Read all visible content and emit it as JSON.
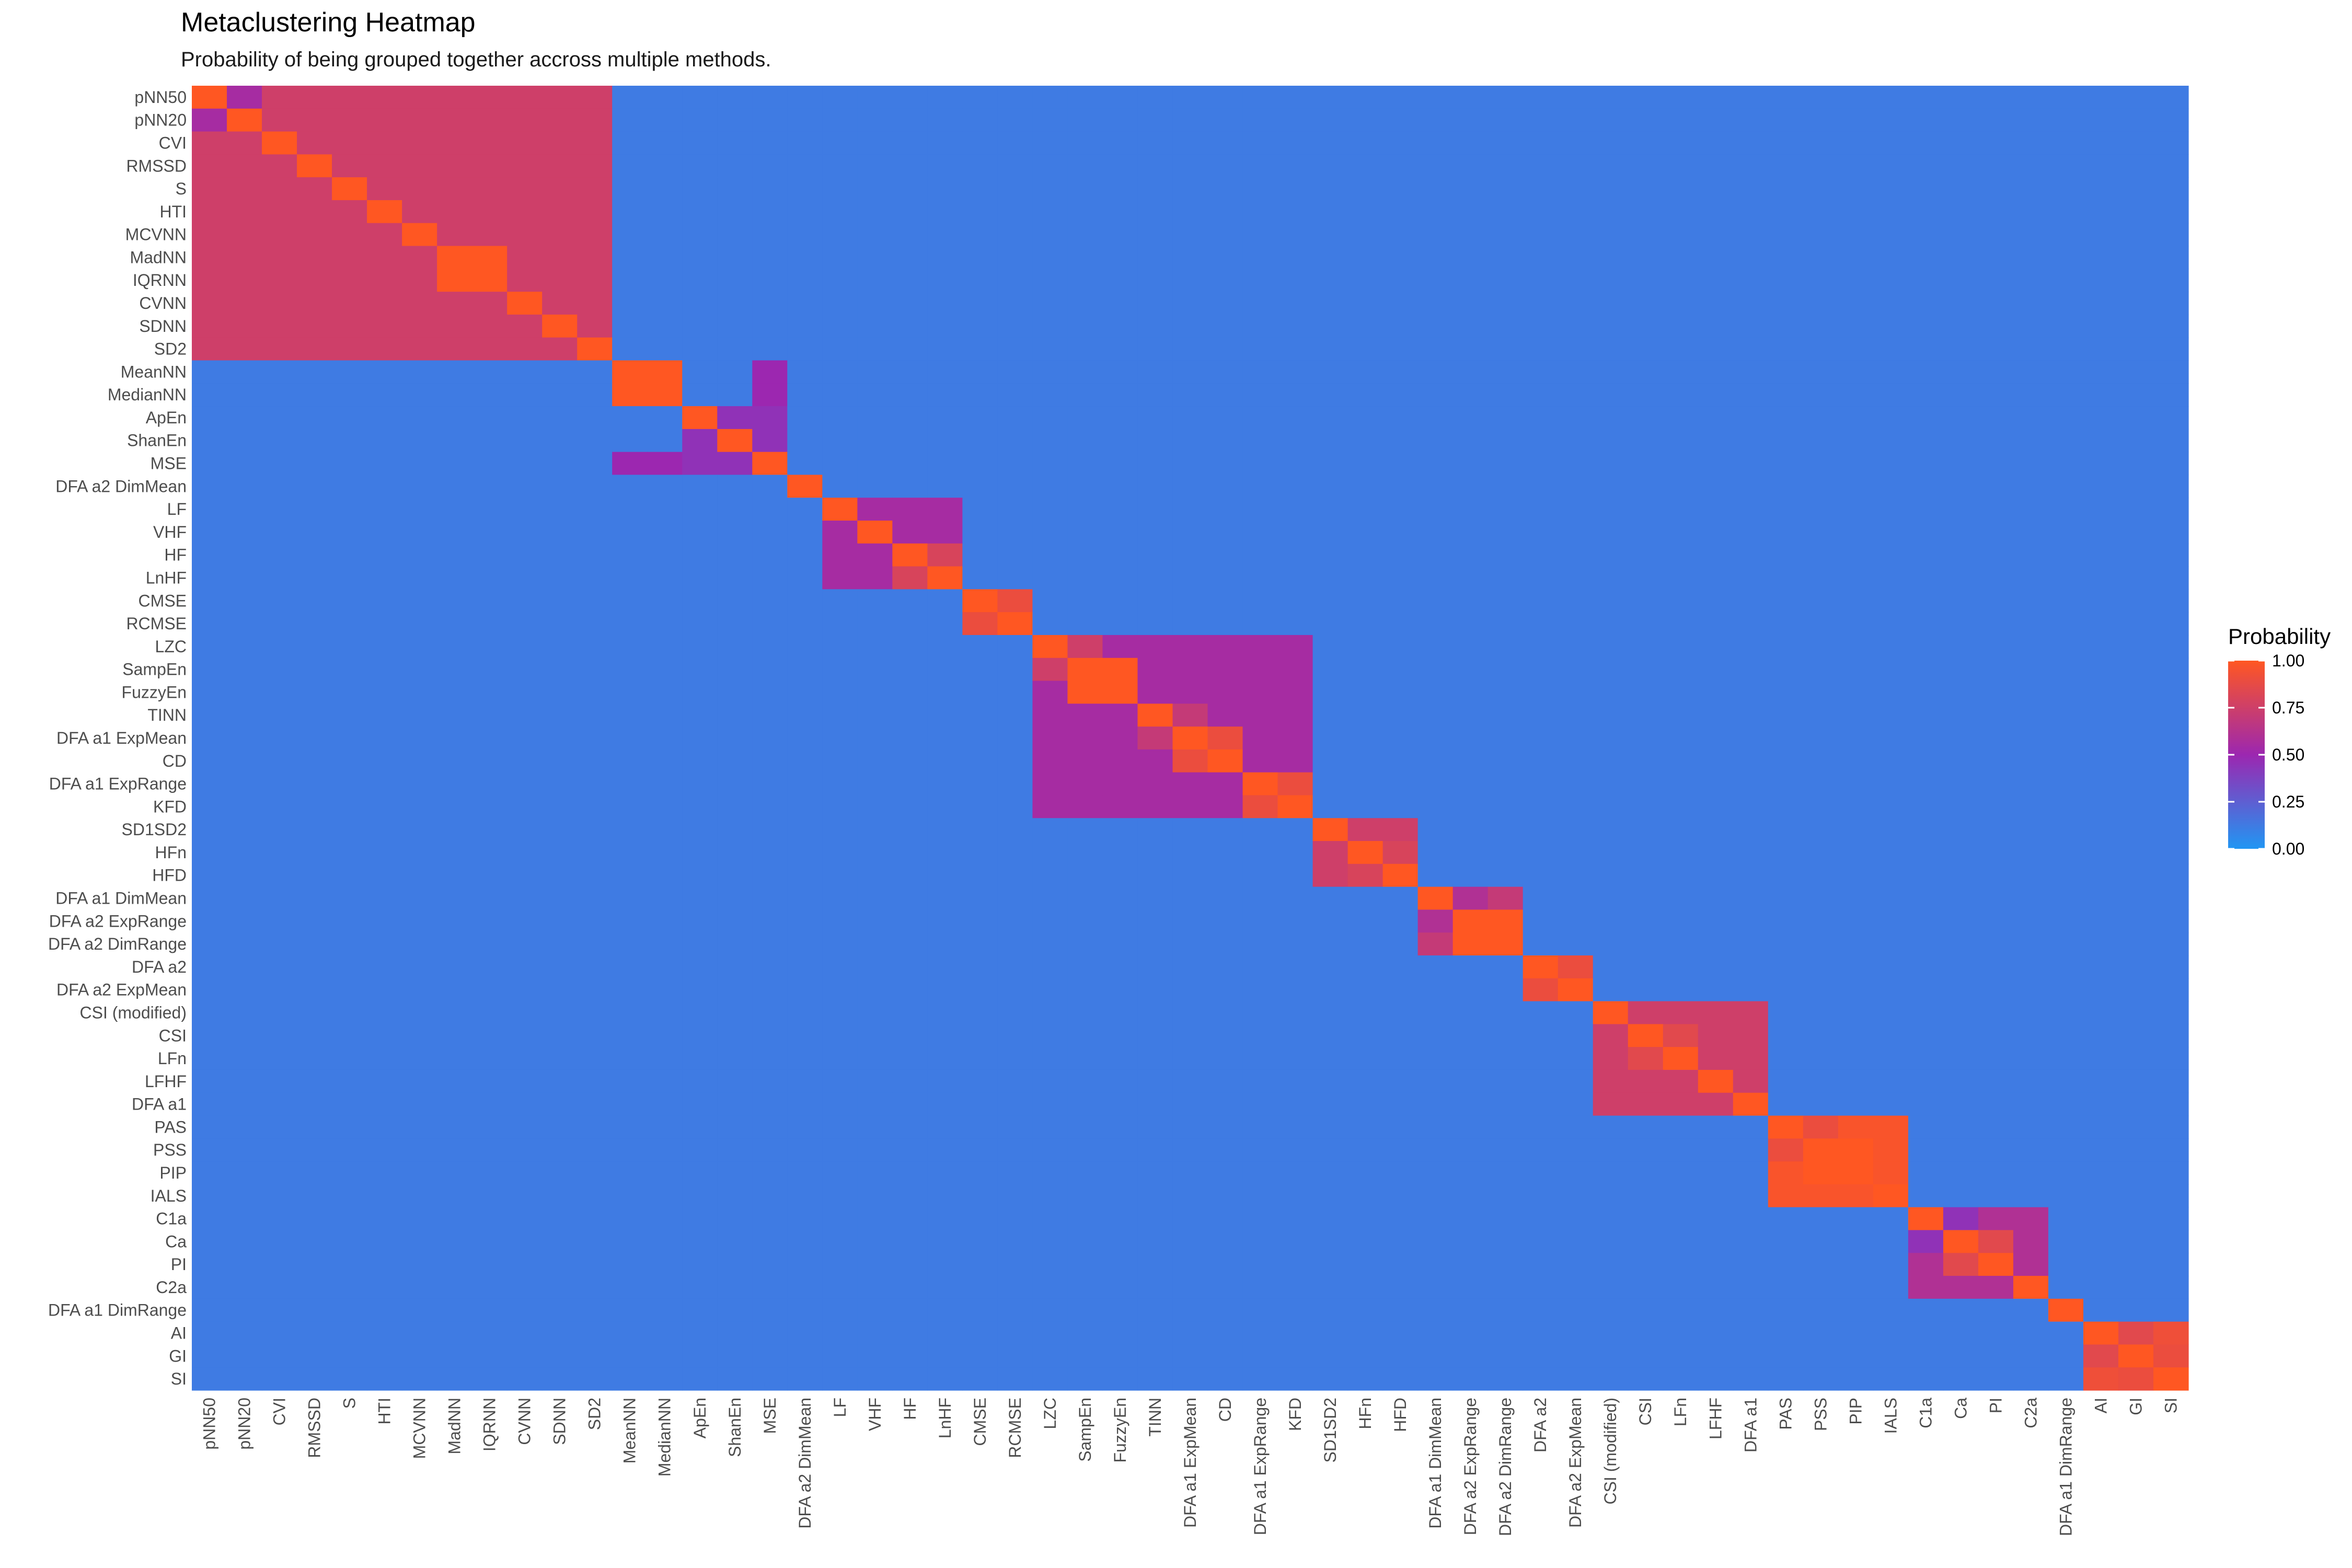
{
  "chart_data": {
    "type": "heatmap",
    "title": "Metaclustering Heatmap",
    "subtitle": "Probability of being grouped together accross multiple methods.",
    "xlabel": "",
    "ylabel": "",
    "labels": [
      "pNN50",
      "pNN20",
      "CVI",
      "RMSSD",
      "S",
      "HTI",
      "MCVNN",
      "MadNN",
      "IQRNN",
      "CVNN",
      "SDNN",
      "SD2",
      "MeanNN",
      "MedianNN",
      "ApEn",
      "ShanEn",
      "MSE",
      "DFA a2 DimMean",
      "LF",
      "VHF",
      "HF",
      "LnHF",
      "CMSE",
      "RCMSE",
      "LZC",
      "SampEn",
      "FuzzyEn",
      "TINN",
      "DFA a1 ExpMean",
      "CD",
      "DFA a1 ExpRange",
      "KFD",
      "SD1SD2",
      "HFn",
      "HFD",
      "DFA a1 DimMean",
      "DFA a2 ExpRange",
      "DFA a2 DimRange",
      "DFA a2",
      "DFA a2 ExpMean",
      "CSI (modified)",
      "CSI",
      "LFn",
      "LFHF",
      "DFA a1",
      "PAS",
      "PSS",
      "PIP",
      "IALS",
      "C1a",
      "Ca",
      "PI",
      "C2a",
      "DFA a1 DimRange",
      "AI",
      "GI",
      "SI"
    ],
    "groups": [
      {
        "members": [
          "pNN50",
          "pNN20",
          "CVI",
          "RMSSD",
          "S",
          "HTI",
          "MCVNN",
          "MadNN",
          "IQRNN",
          "CVNN",
          "SDNN",
          "SD2"
        ],
        "within": 0.75
      },
      {
        "members": [
          "MeanNN",
          "MedianNN"
        ],
        "within": 1.0
      },
      {
        "members": [
          "ApEn",
          "ShanEn",
          "MSE"
        ],
        "within": 0.45
      },
      {
        "members": [
          "LF",
          "VHF",
          "HF",
          "LnHF"
        ],
        "within": 0.55
      },
      {
        "members": [
          "CMSE",
          "RCMSE"
        ],
        "within": 0.9
      },
      {
        "members": [
          "LZC",
          "SampEn",
          "FuzzyEn",
          "TINN",
          "DFA a1 ExpMean",
          "CD",
          "DFA a1 ExpRange",
          "KFD"
        ],
        "within": 0.55
      },
      {
        "members": [
          "SD1SD2",
          "HFn",
          "HFD"
        ],
        "within": 0.75
      },
      {
        "members": [
          "DFA a1 DimMean",
          "DFA a2 ExpRange",
          "DFA a2 DimRange"
        ],
        "within": 0.7
      },
      {
        "members": [
          "DFA a2",
          "DFA a2 ExpMean"
        ],
        "within": 0.9
      },
      {
        "members": [
          "CSI (modified)",
          "CSI",
          "LFn",
          "LFHF",
          "DFA a1"
        ],
        "within": 0.75
      },
      {
        "members": [
          "PAS",
          "PSS",
          "PIP",
          "IALS"
        ],
        "within": 0.97
      },
      {
        "members": [
          "C1a",
          "Ca",
          "PI",
          "C2a"
        ],
        "within": 0.6
      },
      {
        "members": [
          "AI",
          "GI",
          "SI"
        ],
        "within": 0.92
      }
    ],
    "notable_values": [
      {
        "row": "pNN50",
        "col": "pNN20",
        "value": 0.55
      },
      {
        "row": "MadNN",
        "col": "IQRNN",
        "value": 1.0
      },
      {
        "row": "SampEn",
        "col": "FuzzyEn",
        "value": 1.0
      },
      {
        "row": "MeanNN",
        "col": "MSE",
        "value": 0.5
      },
      {
        "row": "MedianNN",
        "col": "MSE",
        "value": 0.5
      },
      {
        "row": "PSS",
        "col": "PIP",
        "value": 1.0
      },
      {
        "row": "PAS",
        "col": "PSS",
        "value": 0.9
      },
      {
        "row": "Ca",
        "col": "PI",
        "value": 0.85
      },
      {
        "row": "C1a",
        "col": "Ca",
        "value": 0.45
      },
      {
        "row": "DFA a2 ExpRange",
        "col": "DFA a2 DimRange",
        "value": 1.0
      },
      {
        "row": "DFA a1 DimMean",
        "col": "DFA a2 ExpRange",
        "value": 0.6
      },
      {
        "row": "HF",
        "col": "LnHF",
        "value": 0.8
      },
      {
        "row": "CSI",
        "col": "LFn",
        "value": 0.85
      },
      {
        "row": "HFn",
        "col": "HFD",
        "value": 0.8
      },
      {
        "row": "GI",
        "col": "SI",
        "value": 0.9
      },
      {
        "row": "AI",
        "col": "GI",
        "value": 0.85
      },
      {
        "row": "DFA a2",
        "col": "DFA a2 ExpMean",
        "value": 0.9
      },
      {
        "row": "LZC",
        "col": "SampEn",
        "value": 0.75
      },
      {
        "row": "TINN",
        "col": "DFA a1 ExpMean",
        "value": 0.7
      },
      {
        "row": "CD",
        "col": "DFA a1 ExpMean",
        "value": 0.9
      },
      {
        "row": "KFD",
        "col": "DFA a1 ExpRange",
        "value": 0.9
      }
    ],
    "baseline": 0.12,
    "value_range": [
      0,
      1
    ],
    "legend": {
      "title": "Probability",
      "ticks": [
        "1.00",
        "0.75",
        "0.50",
        "0.25",
        "0.00"
      ],
      "tick_values": [
        1.0,
        0.75,
        0.5,
        0.25,
        0.0
      ],
      "position": "right"
    },
    "colors": {
      "low": "#2196f3",
      "mid": "#9c27b0",
      "high": "#ff5722"
    }
  }
}
